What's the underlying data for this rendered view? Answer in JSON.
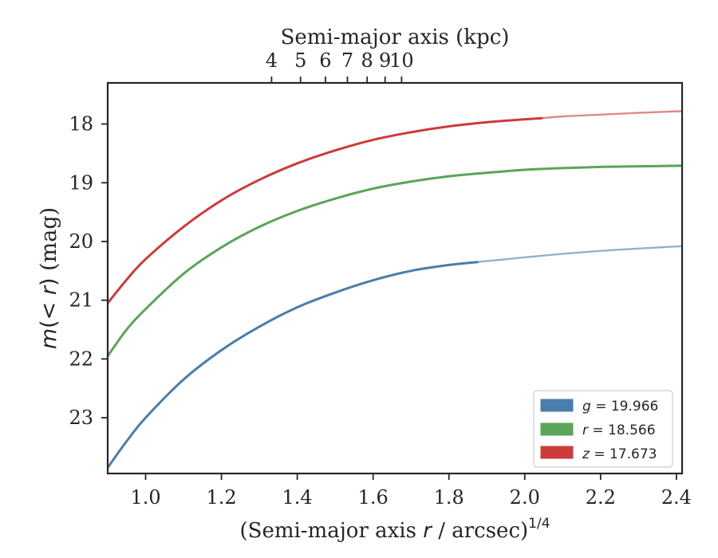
{
  "chart_data": {
    "type": "line",
    "xlabel": {
      "pre": "(Semi-major axis ",
      "var": "r",
      "post": " / arcsec)",
      "sup": "1/4"
    },
    "ylabel": {
      "var1": "m",
      "paren": "(",
      "var2": "< r",
      "close": ")",
      "unit": " (mag)"
    },
    "top_xlabel": "Semi-major axis (kpc)",
    "xlim": [
      0.9,
      2.415
    ],
    "ylim": [
      23.95,
      17.3
    ],
    "y_inverted": true,
    "x_ticks": [
      1.0,
      1.2,
      1.4,
      1.6,
      1.8,
      2.0,
      2.2,
      2.4
    ],
    "x_tick_labels": [
      "1.0",
      "1.2",
      "1.4",
      "1.6",
      "1.8",
      "2.0",
      "2.2",
      "2.4"
    ],
    "y_ticks": [
      18,
      19,
      20,
      21,
      22,
      23
    ],
    "y_tick_labels": [
      "18",
      "19",
      "20",
      "21",
      "22",
      "23"
    ],
    "top_ticks": [
      4,
      5,
      6,
      7,
      8,
      9,
      10
    ],
    "top_tick_labels": [
      "4",
      "5",
      "6",
      "7",
      "8",
      "9",
      "10"
    ],
    "top_axis_transform": "kpc ≈ 1.27 · arcsec (x^4)",
    "legend_placement": "lower-right",
    "series": [
      {
        "name": "g",
        "legend_label": {
          "var": "g",
          "text": " = 19.966"
        },
        "color": "#4a7dab",
        "x_solid_end": 1.875,
        "points": [
          [
            0.9,
            23.85
          ],
          [
            0.95,
            23.4
          ],
          [
            1.0,
            23.0
          ],
          [
            1.1,
            22.35
          ],
          [
            1.2,
            21.85
          ],
          [
            1.3,
            21.45
          ],
          [
            1.4,
            21.12
          ],
          [
            1.5,
            20.87
          ],
          [
            1.6,
            20.66
          ],
          [
            1.7,
            20.5
          ],
          [
            1.8,
            20.4
          ],
          [
            1.875,
            20.35
          ],
          [
            2.0,
            20.27
          ],
          [
            2.1,
            20.21
          ],
          [
            2.2,
            20.16
          ],
          [
            2.3,
            20.12
          ],
          [
            2.415,
            20.08
          ]
        ]
      },
      {
        "name": "r",
        "legend_label": {
          "var": "r",
          "text": " = 18.566"
        },
        "color": "#5aa55a",
        "x_solid_end": 2.415,
        "points": [
          [
            0.9,
            21.95
          ],
          [
            0.95,
            21.5
          ],
          [
            1.0,
            21.15
          ],
          [
            1.1,
            20.55
          ],
          [
            1.2,
            20.1
          ],
          [
            1.3,
            19.75
          ],
          [
            1.4,
            19.48
          ],
          [
            1.5,
            19.27
          ],
          [
            1.6,
            19.1
          ],
          [
            1.7,
            18.98
          ],
          [
            1.8,
            18.89
          ],
          [
            1.9,
            18.83
          ],
          [
            2.0,
            18.78
          ],
          [
            2.1,
            18.75
          ],
          [
            2.2,
            18.73
          ],
          [
            2.3,
            18.72
          ],
          [
            2.415,
            18.71
          ]
        ]
      },
      {
        "name": "z",
        "legend_label": {
          "var": "z",
          "text": " = 17.673"
        },
        "color": "#cc3b3b",
        "x_solid_end": 2.045,
        "points": [
          [
            0.9,
            21.05
          ],
          [
            0.95,
            20.65
          ],
          [
            1.0,
            20.3
          ],
          [
            1.1,
            19.75
          ],
          [
            1.2,
            19.3
          ],
          [
            1.3,
            18.95
          ],
          [
            1.4,
            18.67
          ],
          [
            1.5,
            18.45
          ],
          [
            1.6,
            18.27
          ],
          [
            1.7,
            18.14
          ],
          [
            1.8,
            18.04
          ],
          [
            1.9,
            17.97
          ],
          [
            2.0,
            17.92
          ],
          [
            2.045,
            17.9
          ],
          [
            2.1,
            17.87
          ],
          [
            2.2,
            17.84
          ],
          [
            2.3,
            17.81
          ],
          [
            2.415,
            17.78
          ]
        ]
      }
    ]
  }
}
